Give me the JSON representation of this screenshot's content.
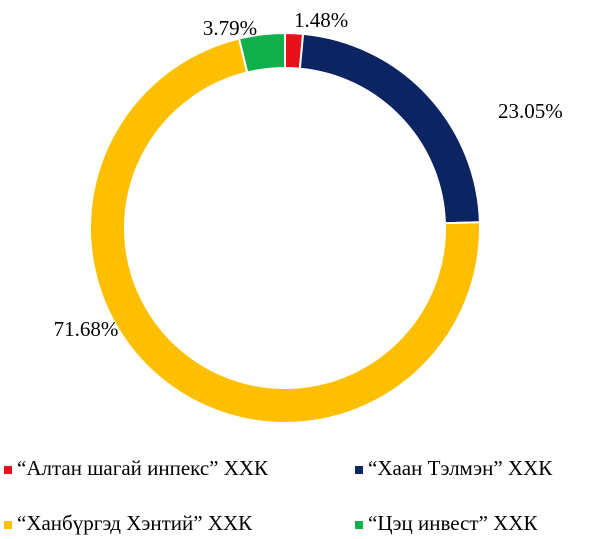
{
  "chart_data": {
    "type": "donut",
    "categories": [
      "“Алтан шагай инпекс” ХХК",
      "“Хаан Тэлмэн” ХХК",
      "“Ханбүргэд Хэнтий” ХХК",
      "“Цэц инвест” ХХК"
    ],
    "values": [
      1.48,
      23.05,
      71.68,
      3.79
    ],
    "value_labels": [
      "1.48%",
      "23.05%",
      "71.68%",
      "3.79%"
    ],
    "colors": [
      "#e8101a",
      "#0c2461",
      "#fdbf00",
      "#12b04c"
    ],
    "legend": "bottom"
  }
}
